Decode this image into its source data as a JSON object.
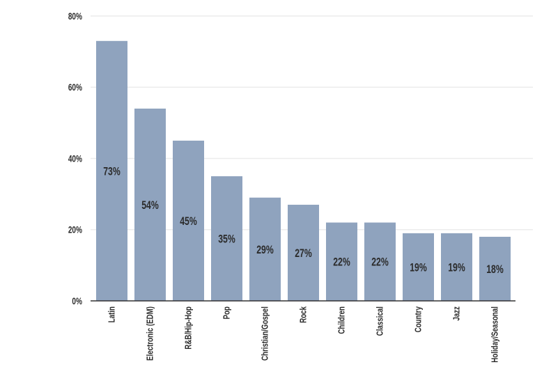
{
  "chart_data": {
    "type": "bar",
    "title": "",
    "xlabel": "",
    "ylabel": "",
    "categories": [
      "Latin",
      "Electronic (EDM)",
      "R&B/Hip-Hop",
      "Pop",
      "Christian/Gospel",
      "Rock",
      "Children",
      "Classical",
      "Country",
      "Jazz",
      "Holiday/Seasonal"
    ],
    "values": [
      73,
      54,
      45,
      35,
      29,
      27,
      22,
      22,
      19,
      19,
      18
    ],
    "data_labels": [
      "73%",
      "54%",
      "45%",
      "35%",
      "29%",
      "27%",
      "22%",
      "22%",
      "19%",
      "19%",
      "18%"
    ],
    "ylim": [
      0,
      80
    ],
    "yticks": [
      0,
      20,
      40,
      60,
      80
    ],
    "ytick_labels": [
      "0%",
      "20%",
      "40%",
      "60%",
      "80%"
    ],
    "grid": true,
    "legend": "none",
    "colors": {
      "bar": "#8fa3be",
      "grid": "#ececec",
      "axis": "#333333",
      "text": "#2b2b2b"
    }
  }
}
